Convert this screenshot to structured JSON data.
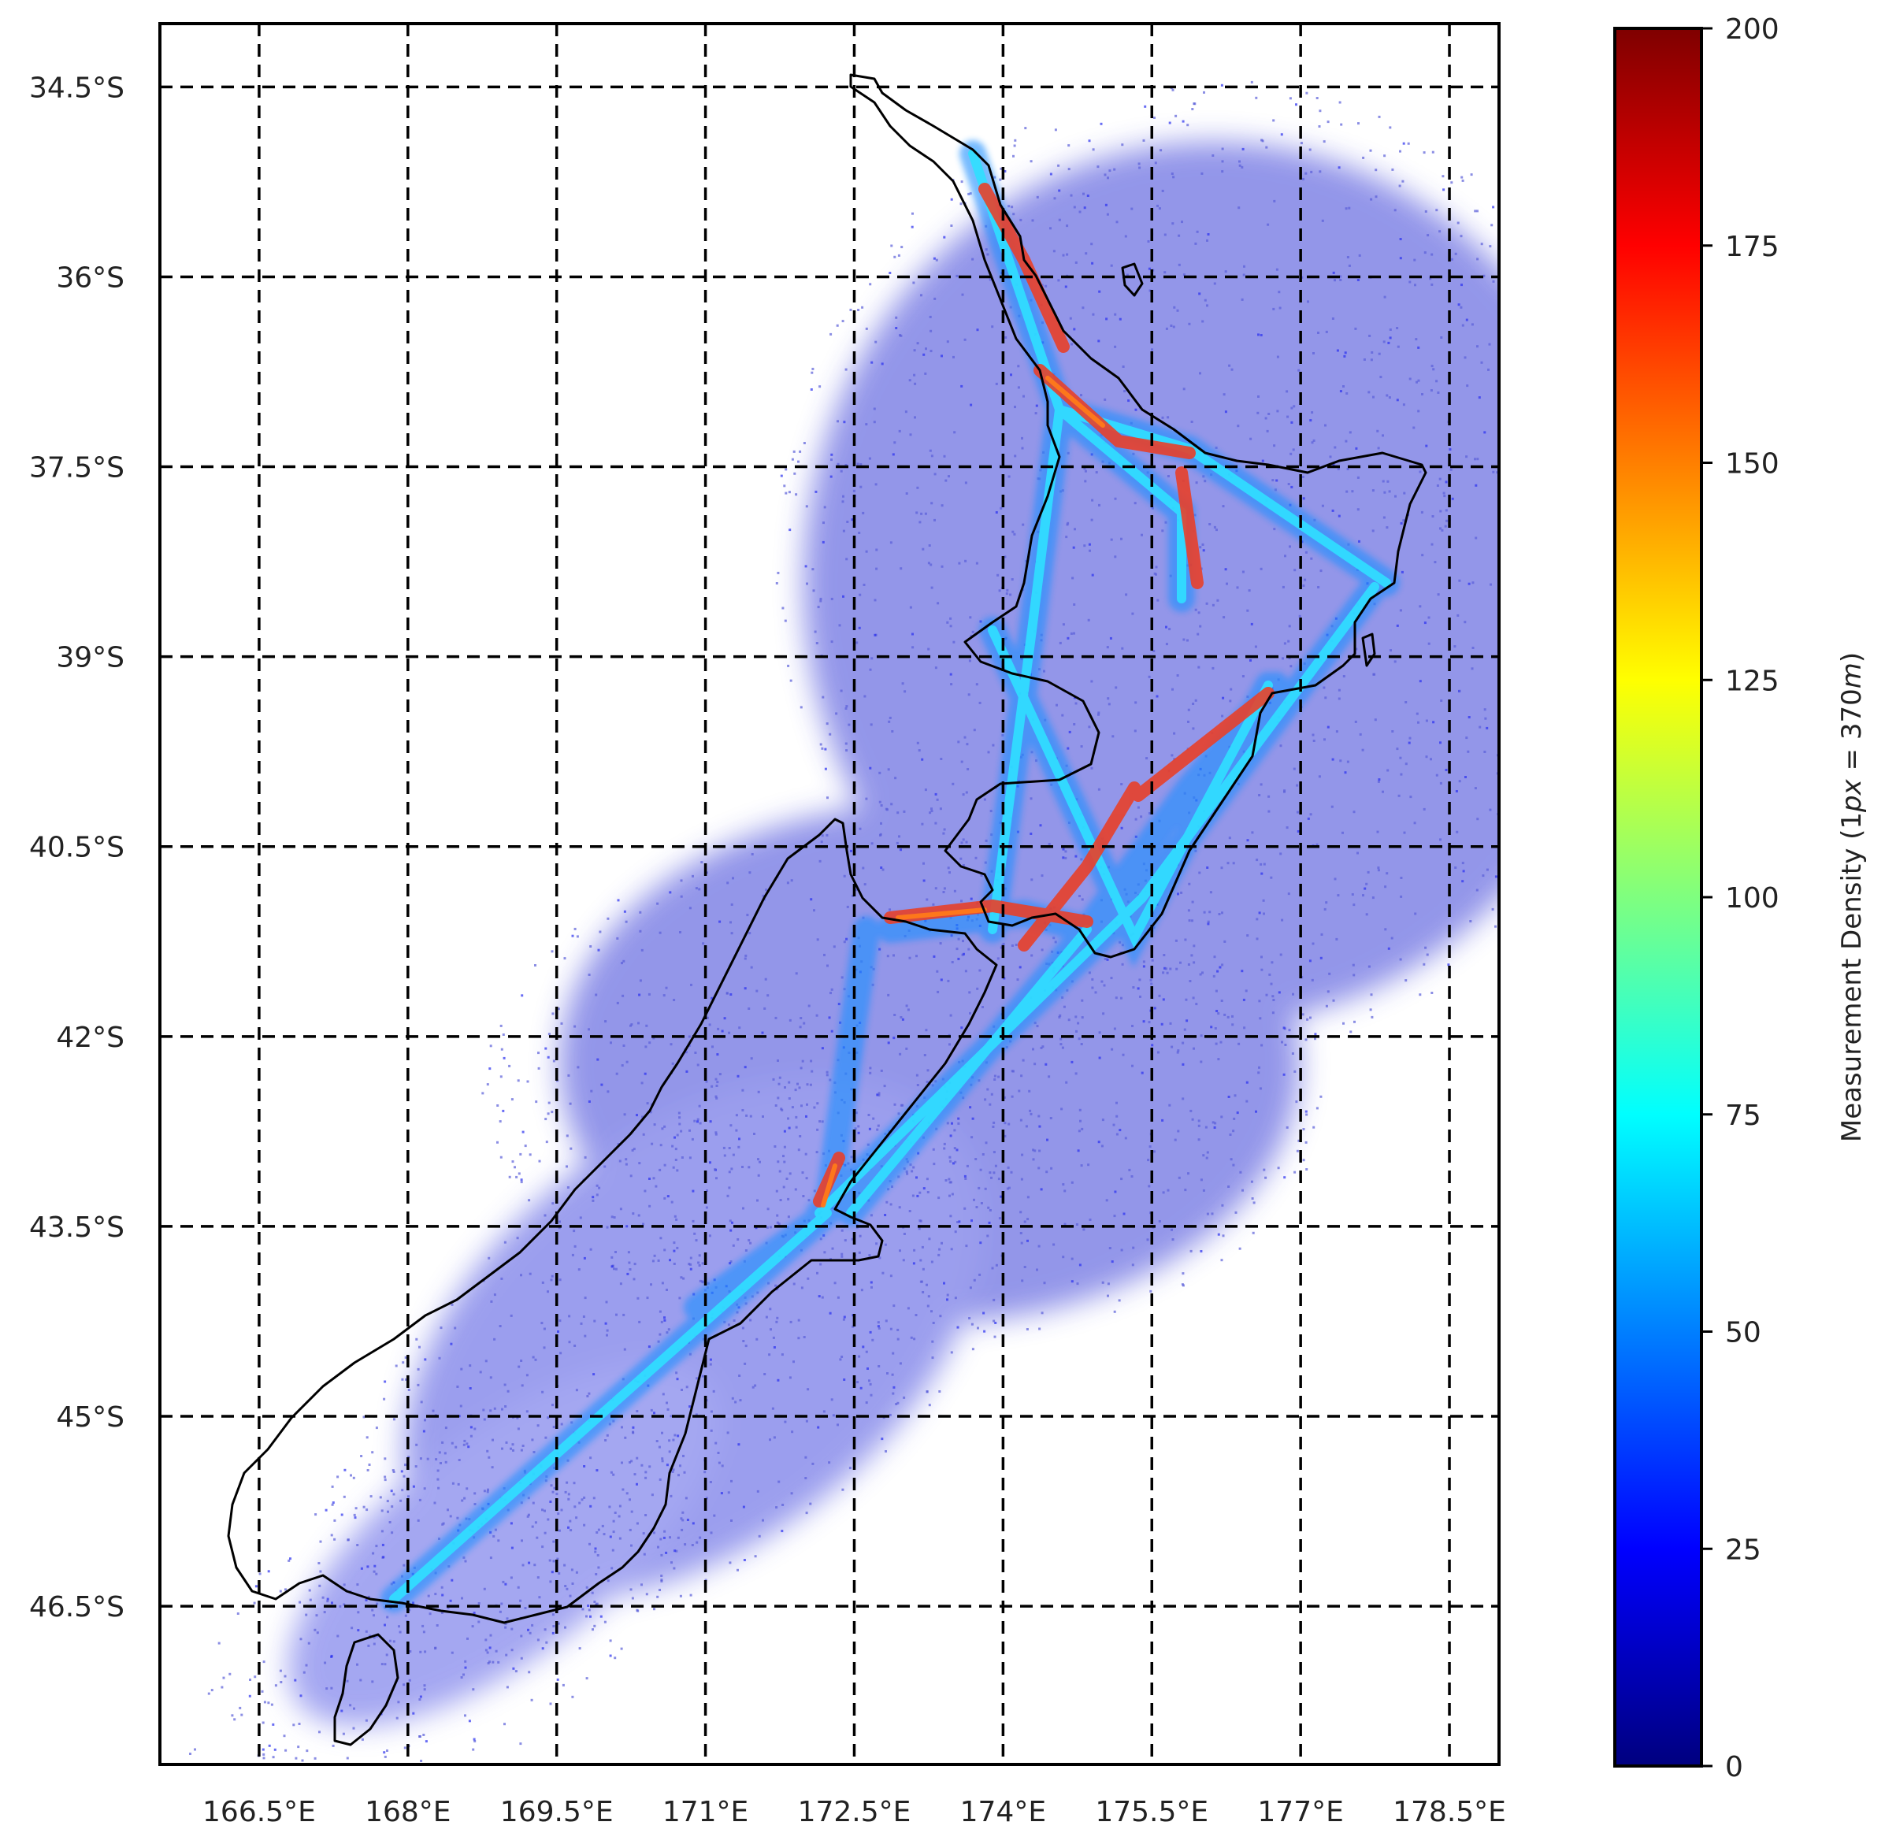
{
  "map": {
    "region": "New Zealand",
    "projection": "lat-lon",
    "lon_range": [
      165.5,
      179.0
    ],
    "lat_range": [
      -47.75,
      -34.0
    ],
    "lon_ticks": [
      166.5,
      168,
      169.5,
      171,
      172.5,
      174,
      175.5,
      177,
      178.5
    ],
    "lat_ticks": [
      -34.5,
      -36,
      -37.5,
      -39,
      -40.5,
      -42,
      -43.5,
      -45,
      -46.5
    ],
    "lon_tick_labels": [
      "166.5°E",
      "168°E",
      "169.5°E",
      "171°E",
      "172.5°E",
      "174°E",
      "175.5°E",
      "177°E",
      "178.5°E"
    ],
    "lat_tick_labels": [
      "34.5°S",
      "36°S",
      "37.5°S",
      "39°S",
      "40.5°S",
      "42°S",
      "43.5°S",
      "45°S",
      "46.5°S"
    ],
    "gridlines": "dashed black",
    "coastline_color": "#000000",
    "background_color": "#ffffff",
    "density_shading": "scattered points with high-density flight corridors between main airports"
  },
  "colorbar": {
    "label": "Measurement Density (1px = 370m)",
    "label_parts": {
      "prefix": "Measurement Density (1",
      "px": "px",
      "equals": " = 370",
      "m": "m",
      "suffix": ")"
    },
    "min": 0,
    "max": 200,
    "ticks": [
      0,
      25,
      50,
      75,
      100,
      125,
      150,
      175,
      200
    ],
    "tick_labels": [
      "0",
      "25",
      "50",
      "75",
      "100",
      "125",
      "150",
      "175",
      "200"
    ],
    "colormap": "jet",
    "stops": [
      "#00007f",
      "#0000ff",
      "#007fff",
      "#00ffff",
      "#7fff7f",
      "#ffff00",
      "#ff7f00",
      "#ff0000",
      "#7f0000"
    ]
  }
}
